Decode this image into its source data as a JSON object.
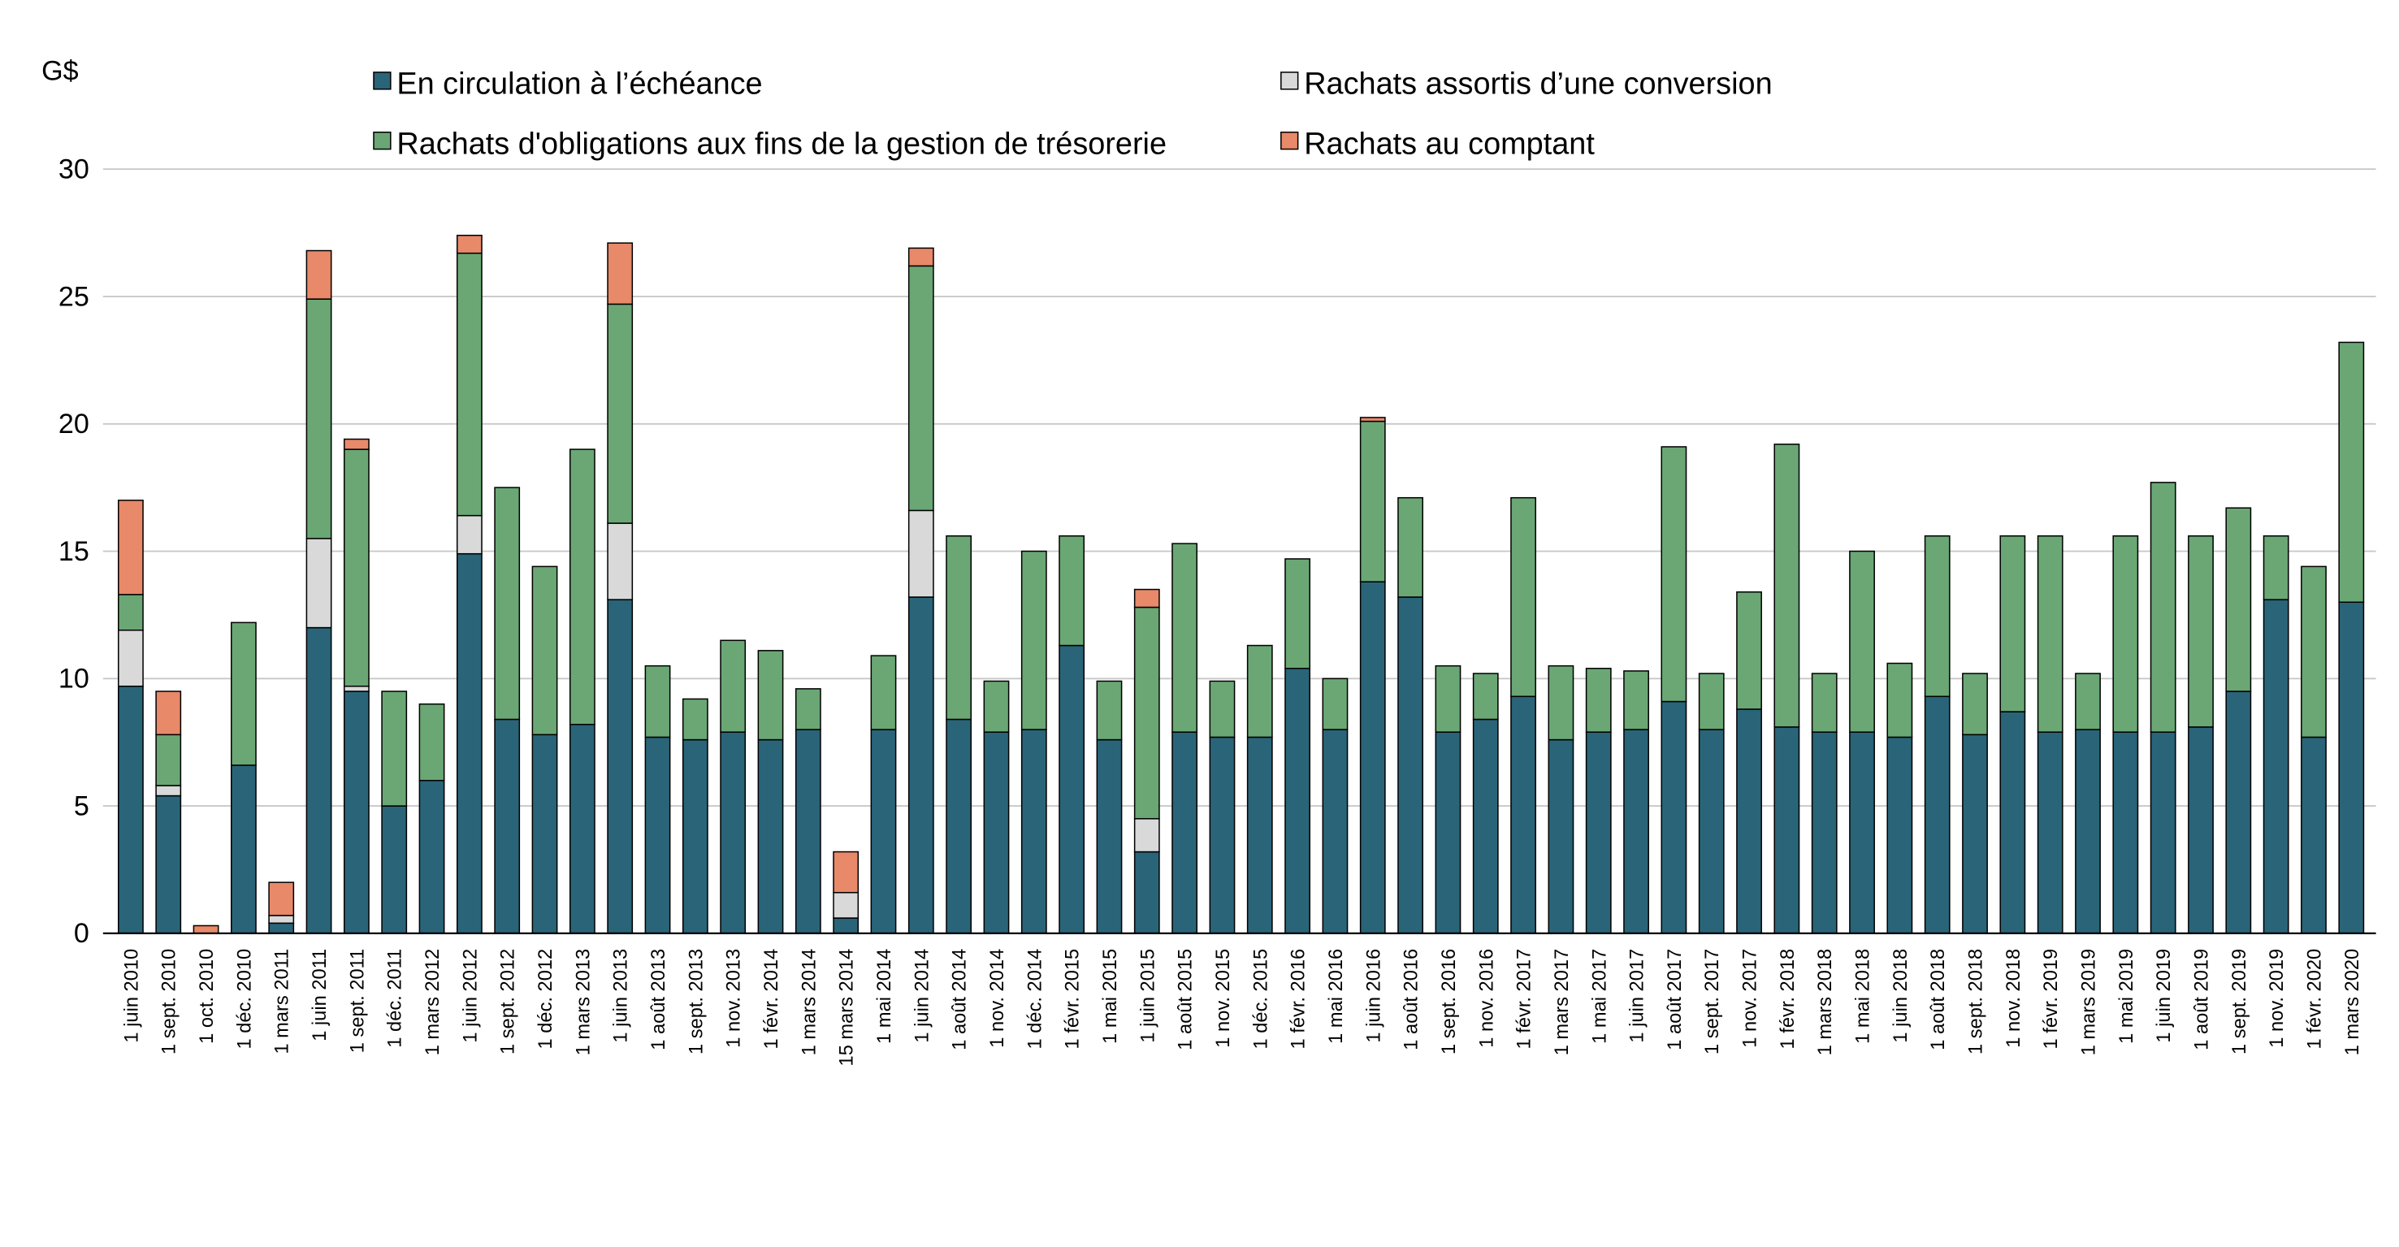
{
  "chart_data": {
    "type": "bar",
    "stacked": true,
    "title": "",
    "ylabel": "G$",
    "xlabel": "",
    "ylim": [
      0,
      30
    ],
    "yticks": [
      0,
      5,
      10,
      15,
      20,
      25,
      30
    ],
    "grid": true,
    "legend_position": "top",
    "categories": [
      "1 juin 2010",
      "1 sept. 2010",
      "1 oct. 2010",
      "1 déc. 2010",
      "1 mars 2011",
      "1 juin 2011",
      "1 sept. 2011",
      "1 déc. 2011",
      "1 mars 2012",
      "1 juin 2012",
      "1 sept. 2012",
      "1 déc. 2012",
      "1 mars 2013",
      "1 juin 2013",
      "1 août 2013",
      "1 sept. 2013",
      "1 nov. 2013",
      "1 févr. 2014",
      "1 mars 2014",
      "15 mars 2014",
      "1 mai 2014",
      "1 juin 2014",
      "1 août 2014",
      "1 nov. 2014",
      "1 déc. 2014",
      "1 févr. 2015",
      "1 mai 2015",
      "1 juin 2015",
      "1 août 2015",
      "1 nov. 2015",
      "1 déc. 2015",
      "1 févr. 2016",
      "1 mai 2016",
      "1 juin 2016",
      "1 août 2016",
      "1 sept. 2016",
      "1 nov. 2016",
      "1 févr. 2017",
      "1 mars 2017",
      "1 mai 2017",
      "1 juin 2017",
      "1 août 2017",
      "1 sept. 2017",
      "1 nov. 2017",
      "1 févr. 2018",
      "1 mars 2018",
      "1 mai 2018",
      "1 juin 2018",
      "1 août 2018",
      "1 sept. 2018",
      "1 nov. 2018",
      "1 févr. 2019",
      "1 mars 2019",
      "1 mai 2019",
      "1 juin 2019",
      "1 août 2019",
      "1 sept. 2019",
      "1 nov. 2019",
      "1 févr. 2020",
      "1 mars 2020"
    ],
    "series": [
      {
        "name": "En circulation à l’échéance",
        "color": "#2a6478",
        "values": [
          9.7,
          5.4,
          0,
          6.6,
          0.4,
          12.0,
          9.5,
          5.0,
          6.0,
          14.9,
          8.4,
          7.8,
          8.2,
          13.1,
          7.7,
          7.6,
          7.9,
          7.6,
          8.0,
          0.6,
          8.0,
          13.2,
          8.4,
          7.9,
          8.0,
          11.3,
          7.6,
          3.2,
          7.9,
          7.7,
          7.7,
          10.4,
          8.0,
          13.8,
          13.2,
          7.9,
          8.4,
          9.3,
          7.6,
          7.9,
          8.0,
          9.1,
          8.0,
          8.8,
          8.1,
          7.9,
          7.9,
          7.7,
          9.3,
          7.8,
          8.7,
          7.9,
          8.0,
          7.9,
          7.9,
          8.1,
          9.5,
          13.1,
          7.7,
          13.0
        ]
      },
      {
        "name": "Rachats assortis d’une conversion",
        "color": "#d9d9d9",
        "values": [
          2.2,
          0.4,
          0,
          0,
          0.3,
          3.5,
          0.2,
          0,
          0,
          1.5,
          0,
          0,
          0,
          3.0,
          0,
          0,
          0,
          0,
          0,
          1.0,
          0,
          3.4,
          0,
          0,
          0,
          0,
          0,
          1.3,
          0,
          0,
          0,
          0,
          0,
          0,
          0,
          0,
          0,
          0,
          0,
          0,
          0,
          0,
          0,
          0,
          0,
          0,
          0,
          0,
          0,
          0,
          0,
          0,
          0,
          0,
          0,
          0,
          0,
          0,
          0,
          0
        ]
      },
      {
        "name": "Rachats d'obligations aux fins de la gestion de trésorerie",
        "color": "#6aa774",
        "values": [
          1.4,
          2.0,
          0,
          5.6,
          0,
          9.4,
          9.3,
          4.5,
          3.0,
          10.3,
          9.1,
          6.6,
          10.8,
          8.6,
          2.8,
          1.6,
          3.6,
          3.5,
          1.6,
          0,
          2.9,
          9.6,
          7.2,
          2.0,
          7.0,
          4.3,
          2.3,
          8.3,
          7.4,
          2.2,
          3.6,
          4.3,
          2.0,
          6.3,
          3.9,
          2.6,
          1.8,
          7.8,
          2.9,
          2.5,
          2.3,
          10.0,
          2.2,
          4.6,
          11.1,
          2.3,
          7.1,
          2.9,
          6.3,
          2.4,
          6.9,
          7.7,
          2.2,
          7.7,
          9.8,
          7.5,
          7.2,
          2.5,
          6.7,
          10.2
        ]
      },
      {
        "name": "Rachats au comptant",
        "color": "#e8896a",
        "values": [
          3.7,
          1.7,
          0.3,
          0,
          1.3,
          1.9,
          0.4,
          0,
          0,
          0.7,
          0,
          0,
          0,
          2.4,
          0,
          0,
          0,
          0,
          0,
          1.6,
          0,
          0.7,
          0,
          0,
          0,
          0,
          0,
          0.7,
          0,
          0,
          0,
          0,
          0,
          0.15,
          0,
          0,
          0,
          0,
          0,
          0,
          0,
          0,
          0,
          0,
          0,
          0,
          0,
          0,
          0,
          0,
          0,
          0,
          0,
          0,
          0,
          0,
          0,
          0,
          0,
          0
        ]
      }
    ]
  }
}
